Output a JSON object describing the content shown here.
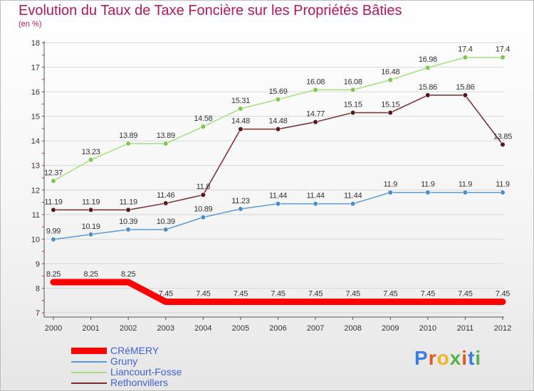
{
  "header": {
    "title": "Evolution du Taux de Taxe Foncière sur les Propriétés Bâties",
    "subtitle": "(en %)"
  },
  "brand": {
    "text": "Proxiti",
    "colors": [
      "#3c7ee0",
      "#e8561c",
      "#f3b51b",
      "#55b24a",
      "#e8561c",
      "#3c7ee0",
      "#55b24a"
    ]
  },
  "chart_data": {
    "type": "line",
    "title": "Evolution du Taux de Taxe Foncière sur les Propriétés Bâties",
    "ylabel": "(en %)",
    "xlabel": "",
    "x": [
      "2000",
      "2001",
      "2002",
      "2003",
      "2004",
      "2005",
      "2006",
      "2007",
      "2008",
      "2009",
      "2010",
      "2011",
      "2012"
    ],
    "ylim": [
      7,
      18
    ],
    "yticks": [
      "7",
      "8",
      "9",
      "10",
      "11",
      "12",
      "13",
      "14",
      "15",
      "16",
      "17",
      "18"
    ],
    "legend_position": "bottom-left",
    "series": [
      {
        "name": "CRéMERY",
        "color": "#ff0000",
        "width": 9,
        "labels": [
          "8.25",
          "8.25",
          "8.25",
          "7.45",
          "7.45",
          "7.45",
          "7.45",
          "7.45",
          "7.45",
          "7.45",
          "7.45",
          "7.45",
          "7.45"
        ],
        "values": [
          8.25,
          8.25,
          8.25,
          7.45,
          7.45,
          7.45,
          7.45,
          7.45,
          7.45,
          7.45,
          7.45,
          7.45,
          7.45
        ]
      },
      {
        "name": "Gruny",
        "color": "#5b9bd5",
        "marker": "#4a8ccc",
        "width": 1.5,
        "labels": [
          "9.99",
          "10.19",
          "10.39",
          "10.39",
          "10.89",
          "11.23",
          "11.44",
          "11.44",
          "11.44",
          "11.9",
          "11.9",
          "11.9",
          "11.9"
        ],
        "values": [
          9.99,
          10.19,
          10.39,
          10.39,
          10.89,
          11.23,
          11.44,
          11.44,
          11.44,
          11.9,
          11.9,
          11.9,
          11.9
        ]
      },
      {
        "name": "Liancourt-Fosse",
        "color": "#a3e07a",
        "marker": "#7cc84a",
        "width": 1.5,
        "labels": [
          "12.37",
          "13.23",
          "13.89",
          "13.89",
          "14.58",
          "15.31",
          "15.69",
          "16.08",
          "16.08",
          "16.48",
          "16.98",
          "17.4",
          "17.4"
        ],
        "values": [
          12.37,
          13.23,
          13.89,
          13.89,
          14.58,
          15.31,
          15.69,
          16.08,
          16.08,
          16.48,
          16.98,
          17.4,
          17.4
        ]
      },
      {
        "name": "Rethonvillers",
        "color": "#7a2a2a",
        "marker": "#5a1515",
        "width": 1.5,
        "labels": [
          "11.19",
          "11.19",
          "11.19",
          "11.46",
          "11.8",
          "14.48",
          "14.48",
          "14.77",
          "15.15",
          "15.15",
          "15.86",
          "15.86",
          "13.85"
        ],
        "values": [
          11.19,
          11.19,
          11.19,
          11.46,
          11.8,
          14.48,
          14.48,
          14.77,
          15.15,
          15.15,
          15.86,
          15.86,
          13.85
        ]
      }
    ]
  }
}
